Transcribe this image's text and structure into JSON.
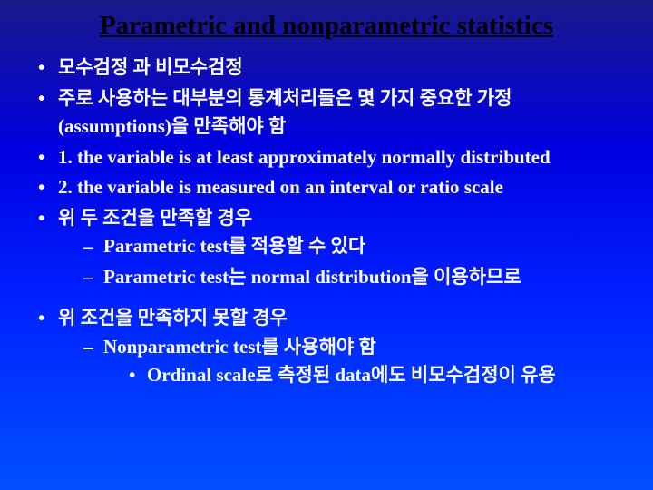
{
  "title": "Parametric and nonparametric statistics",
  "bullets": {
    "b1": "모수검정 과 비모수검정",
    "b2a": "주로 사용하는 대부분의 통계처리들은 몇 가지 중요한 가정",
    "b2b": "(assumptions)을 만족해야 함",
    "b3": "1. the variable is at least approximately normally distributed",
    "b4": "2. the variable is measured on an interval or ratio scale",
    "b5": "위 두 조건을 만족할 경우",
    "b5s1": "Parametric test를 적용할 수 있다",
    "b5s2": "Parametric test는 normal distribution을 이용하므로",
    "b6": "위 조건을 만족하지 못할 경우",
    "b6s1": "Nonparametric test를 사용해야 함",
    "b6s1s1": "Ordinal scale로 측정된 data에도 비모수검정이 유용"
  },
  "colors": {
    "title": "#000000",
    "text": "#ffffff",
    "bg_top": "#1a1a8a",
    "bg_bottom": "#0050ff"
  },
  "fonts": {
    "title_size_pt": 22,
    "body_size_pt": 16,
    "family": "Times New Roman"
  }
}
